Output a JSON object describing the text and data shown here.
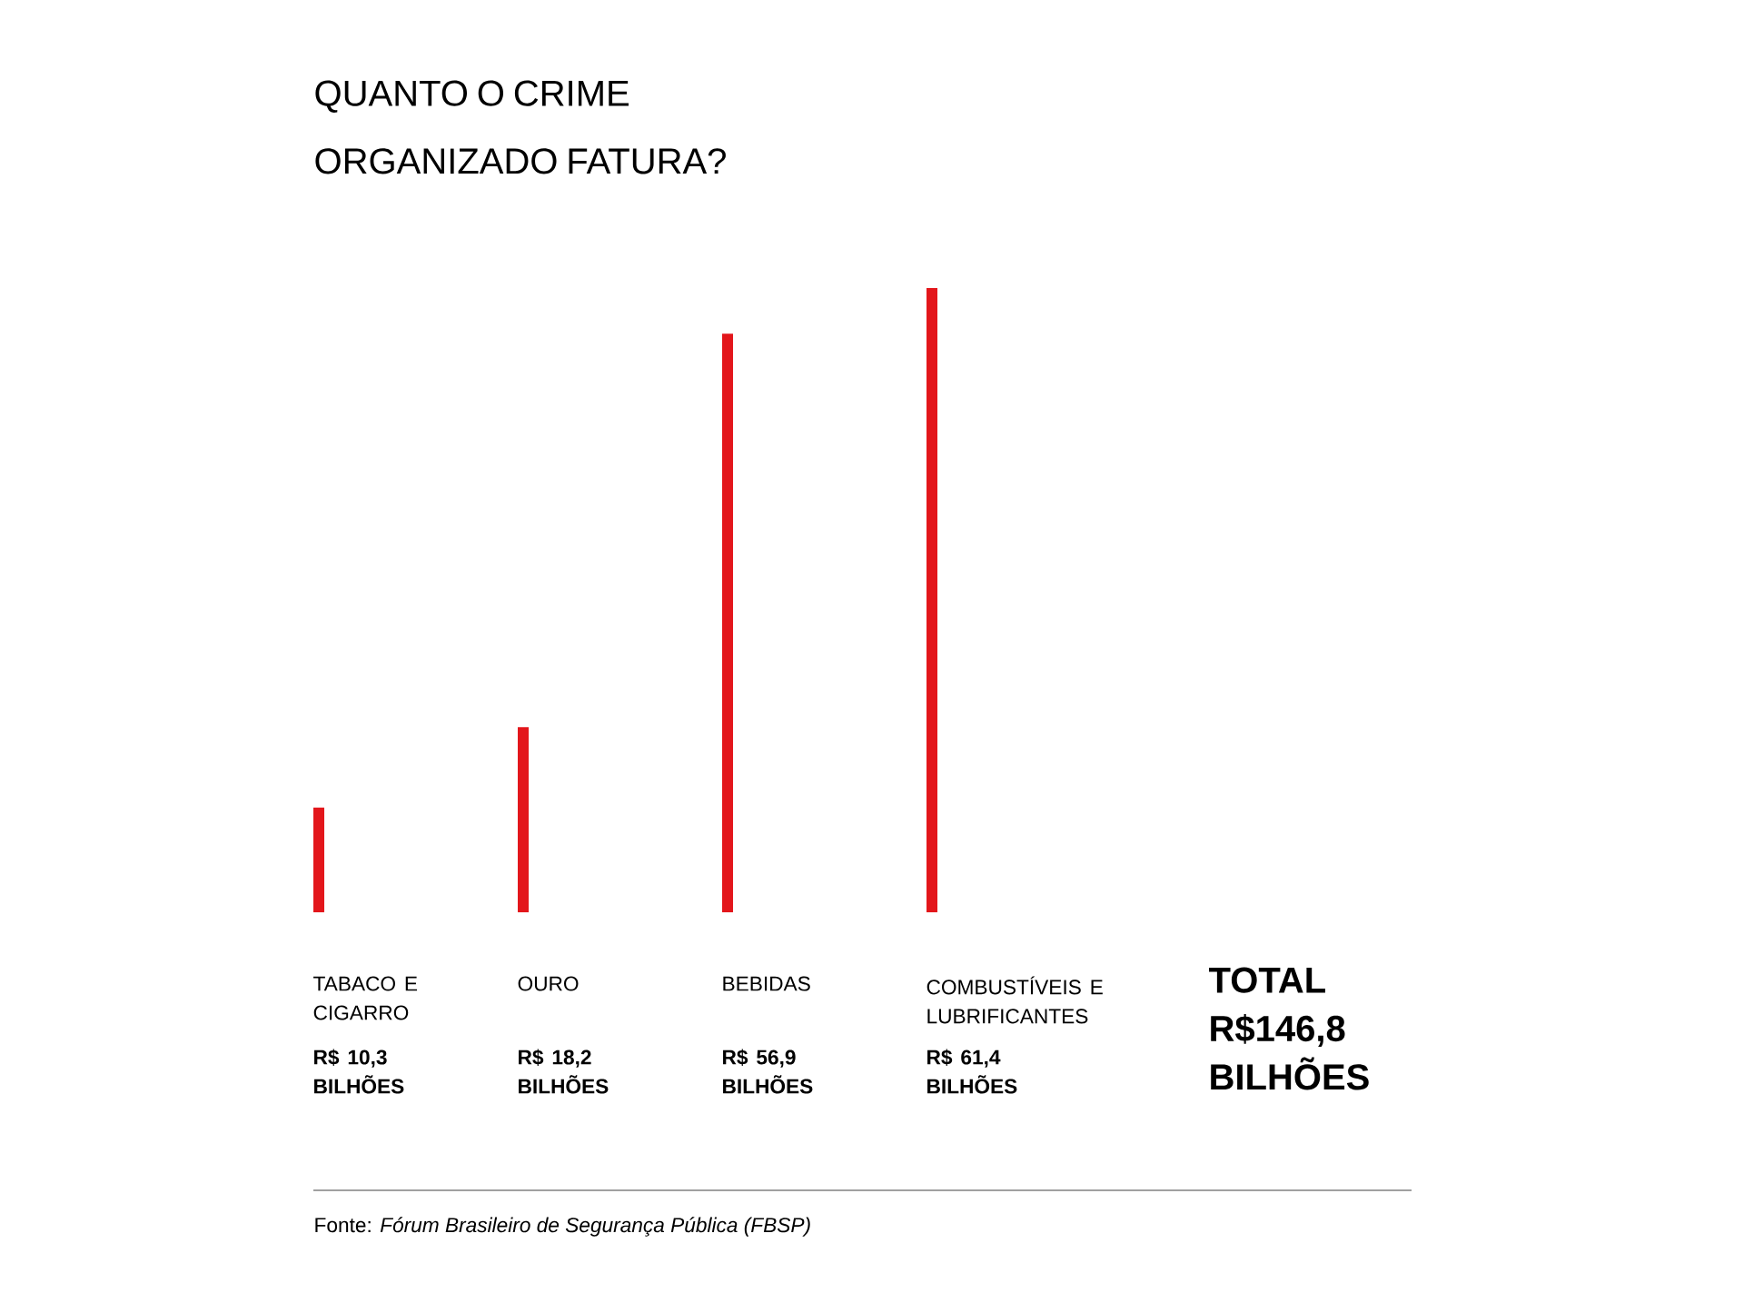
{
  "chart_data": {
    "type": "bar",
    "title": "QUANTO O CRIME ORGANIZADO FATURA?",
    "categories": [
      "TABACO E CIGARRO",
      "OURO",
      "BEBIDAS",
      "COMBUSTÍVEIS E LUBRIFICANTES"
    ],
    "values": [
      10.3,
      18.2,
      56.9,
      61.4
    ],
    "color": "#e3161b",
    "value_labels": [
      "R$ 10,3 BILHÕES",
      "R$ 18,2 BILHÕES",
      "R$ 56,9 BILHÕES",
      "R$ 61,4 BILHÕES"
    ],
    "annotations": [
      "**TOTAL R$146,8 BILHÕES**",
      "Fonte: *Fórum Brasileiro de Segurança Pública (FBSP)*"
    ]
  }
}
